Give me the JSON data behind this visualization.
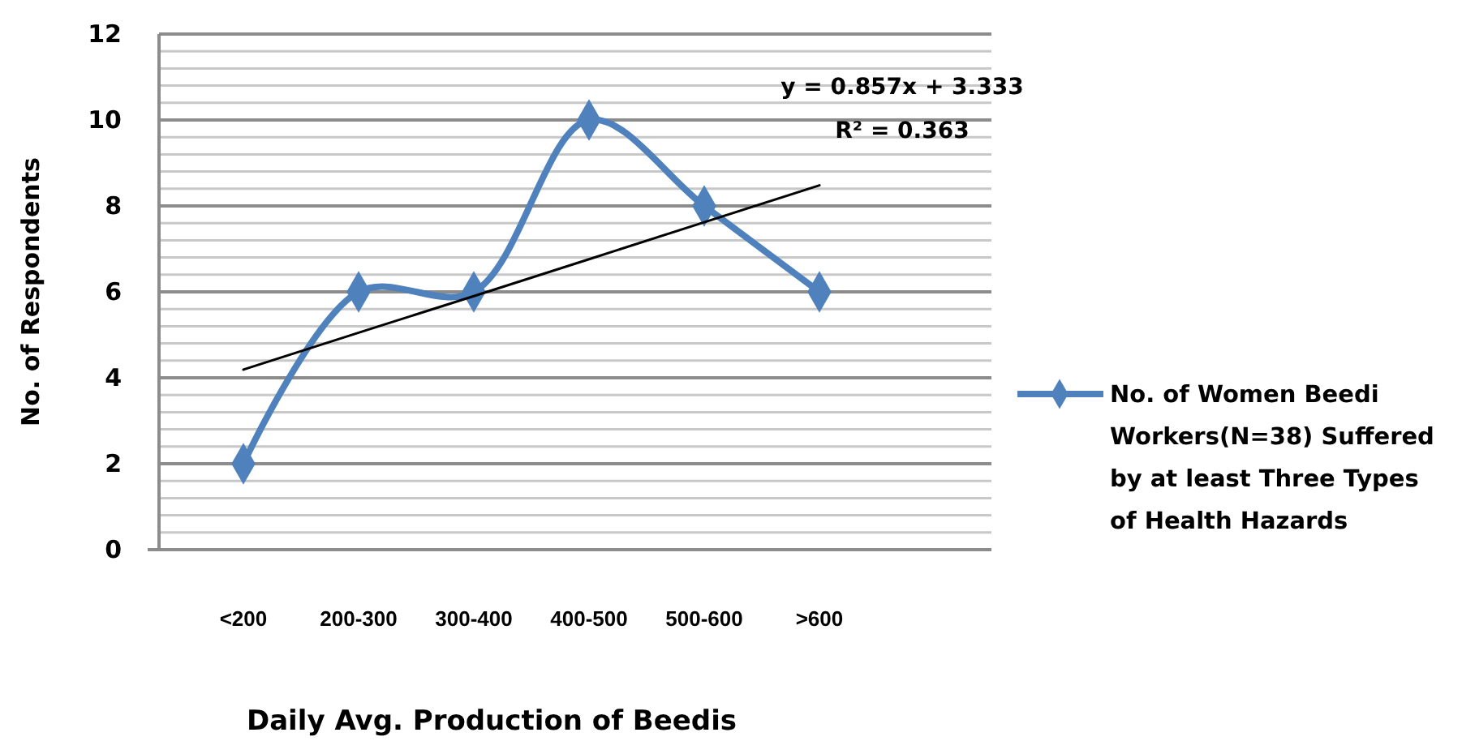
{
  "chart_data": {
    "type": "line",
    "xlabel": "Daily Avg. Production of Beedis",
    "ylabel": "No. of Respondents",
    "categories": [
      "<200",
      "200-300",
      "300-400",
      "400-500",
      "500-600",
      ">600"
    ],
    "series": [
      {
        "name": "No. of Women Beedi Workers(N=38) Suffered by at least Three Types of Health Hazards",
        "color": "#4f81bd",
        "values": [
          2,
          6,
          6,
          10,
          8,
          6
        ],
        "marker": "diamond"
      },
      {
        "color": "#000000",
        "values": [
          4.19,
          5.05,
          5.9,
          6.76,
          7.62,
          8.48
        ],
        "marker": "none"
      }
    ],
    "ylim": [
      0,
      12
    ],
    "yticks": [
      0,
      {
        "value": 0.4,
        "label": null
      },
      {
        "value": 0.8,
        "label": null
      },
      {
        "value": 1.2,
        "label": null
      },
      {
        "value": 1.6,
        "label": null
      },
      2,
      {
        "value": 2.4,
        "label": null
      },
      {
        "value": 2.8,
        "label": null
      },
      {
        "value": 3.2,
        "label": null
      },
      {
        "value": 3.6,
        "label": null
      },
      4,
      {
        "value": 4.4,
        "label": null
      },
      {
        "value": 4.8,
        "label": null
      },
      {
        "value": 5.2,
        "label": null
      },
      {
        "value": 5.6,
        "label": null
      },
      6,
      {
        "value": 6.4,
        "label": null
      },
      {
        "value": 6.8,
        "label": null
      },
      {
        "value": 7.2,
        "label": null
      },
      {
        "value": 7.6,
        "label": null
      },
      8,
      {
        "value": 8.4,
        "label": null
      },
      {
        "value": 8.8,
        "label": null
      },
      {
        "value": 9.2,
        "label": null
      },
      {
        "value": 9.6,
        "label": null
      },
      10,
      {
        "value": 10.4,
        "label": null
      },
      {
        "value": 10.8,
        "label": null
      },
      {
        "value": 11.2,
        "label": null
      },
      {
        "value": 11.6,
        "label": null
      },
      12
    ],
    "grid": true,
    "legend": "right",
    "annotations": [
      "y = 0.857x + 3.333",
      "R² = 0.363"
    ]
  }
}
